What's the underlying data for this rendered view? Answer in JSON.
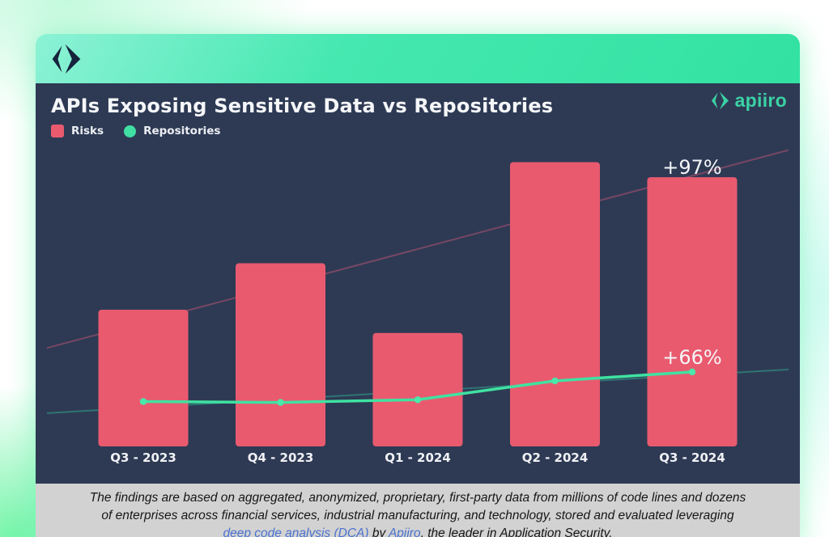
{
  "brandbar": {
    "icon": "apiiro-diamond-mark"
  },
  "chart": {
    "title": "APIs Exposing Sensitive Data vs Repositories",
    "legend": [
      {
        "label": "Risks",
        "color": "#e95a6f",
        "shape": "square"
      },
      {
        "label": "Repositories",
        "color": "#41dfa3",
        "shape": "circle"
      }
    ],
    "brand": {
      "name": "apiiro",
      "color": "#3bd2a4",
      "icon": "apiiro-logo-icon"
    }
  },
  "chart_data": {
    "type": "bar+line",
    "title": "APIs Exposing Sensitive Data vs Repositories",
    "categories": [
      "Q3 - 2023",
      "Q4 - 2023",
      "Q1 - 2024",
      "Q2 - 2024",
      "Q3 - 2024"
    ],
    "value_axis": {
      "visible": false,
      "unit": "indexed, Q3 2023 = 100"
    },
    "grid": false,
    "legend_position": "top-left",
    "series": [
      {
        "name": "Risks",
        "type": "bar",
        "color": "#e95a6f",
        "trend_color": "#c05577",
        "values": [
          100,
          134,
          83,
          208,
          197
        ],
        "trendline": true
      },
      {
        "name": "Repositories",
        "type": "line",
        "color": "#3fe2a1",
        "marker_color": "#4ae8aa",
        "trend_color": "#2fae92",
        "values": [
          100,
          98,
          104,
          146,
          166
        ],
        "trendline": true
      }
    ],
    "annotations": [
      {
        "text": "+97%",
        "series": "Risks",
        "category": "Q3 - 2024"
      },
      {
        "text": "+66%",
        "series": "Repositories",
        "category": "Q3 - 2024"
      }
    ]
  },
  "footer": {
    "line1": "The findings are based on aggregated, anonymized, proprietary, first-party data from millions of code lines and dozens",
    "line2": "of enterprises across financial services, industrial manufacturing, and technology, stored and evaluated leveraging",
    "line3_segments": [
      {
        "text": "deep code analysis (DCA)",
        "link": true
      },
      {
        "text": " by ",
        "link": false
      },
      {
        "text": "Apiiro",
        "link": true
      },
      {
        "text": ", the leader in Application Security.",
        "link": false
      }
    ]
  }
}
